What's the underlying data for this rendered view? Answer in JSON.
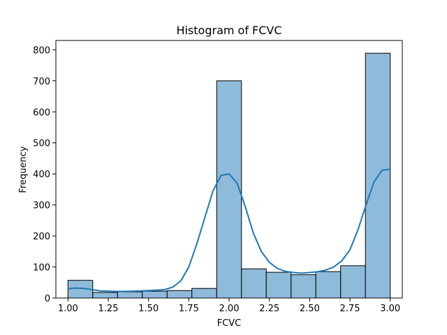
{
  "chart_data": {
    "type": "bar",
    "title": "Histogram of FCVC",
    "xlabel": "FCVC",
    "ylabel": "Frequency",
    "xlim": [
      0.925,
      3.075
    ],
    "ylim": [
      0,
      830
    ],
    "x_ticks": [
      {
        "value": 1.0,
        "label": "1.00"
      },
      {
        "value": 1.25,
        "label": "1.25"
      },
      {
        "value": 1.5,
        "label": "1.50"
      },
      {
        "value": 1.75,
        "label": "1.75"
      },
      {
        "value": 2.0,
        "label": "2.00"
      },
      {
        "value": 2.25,
        "label": "2.25"
      },
      {
        "value": 2.5,
        "label": "2.50"
      },
      {
        "value": 2.75,
        "label": "2.75"
      },
      {
        "value": 3.0,
        "label": "3.00"
      }
    ],
    "y_ticks": [
      {
        "value": 0,
        "label": "0"
      },
      {
        "value": 100,
        "label": "100"
      },
      {
        "value": 200,
        "label": "200"
      },
      {
        "value": 300,
        "label": "300"
      },
      {
        "value": 400,
        "label": "400"
      },
      {
        "value": 500,
        "label": "500"
      },
      {
        "value": 600,
        "label": "600"
      },
      {
        "value": 700,
        "label": "700"
      },
      {
        "value": 800,
        "label": "800"
      }
    ],
    "bins": [
      {
        "x0": 1.0,
        "x1": 1.1538,
        "count": 57
      },
      {
        "x0": 1.1538,
        "x1": 1.3077,
        "count": 18
      },
      {
        "x0": 1.3077,
        "x1": 1.4615,
        "count": 20
      },
      {
        "x0": 1.4615,
        "x1": 1.6154,
        "count": 22
      },
      {
        "x0": 1.6154,
        "x1": 1.7692,
        "count": 24
      },
      {
        "x0": 1.7692,
        "x1": 1.9231,
        "count": 31
      },
      {
        "x0": 1.9231,
        "x1": 2.0769,
        "count": 700
      },
      {
        "x0": 2.0769,
        "x1": 2.2308,
        "count": 94
      },
      {
        "x0": 2.2308,
        "x1": 2.3846,
        "count": 83
      },
      {
        "x0": 2.3846,
        "x1": 2.5385,
        "count": 75
      },
      {
        "x0": 2.5385,
        "x1": 2.6923,
        "count": 85
      },
      {
        "x0": 2.6923,
        "x1": 2.8462,
        "count": 104
      },
      {
        "x0": 2.8462,
        "x1": 3.0,
        "count": 789
      }
    ],
    "kde": {
      "x": [
        1.0,
        1.05,
        1.1,
        1.15,
        1.2,
        1.3,
        1.4,
        1.5,
        1.6,
        1.65,
        1.7,
        1.75,
        1.8,
        1.85,
        1.9,
        1.95,
        2.0,
        2.05,
        2.1,
        2.15,
        2.2,
        2.25,
        2.3,
        2.35,
        2.4,
        2.45,
        2.5,
        2.55,
        2.6,
        2.65,
        2.7,
        2.75,
        2.8,
        2.85,
        2.9,
        2.95,
        3.0
      ],
      "y": [
        30,
        32,
        31,
        27,
        23,
        21,
        22,
        24,
        27,
        35,
        55,
        100,
        175,
        260,
        345,
        395,
        400,
        370,
        295,
        210,
        150,
        115,
        95,
        86,
        82,
        80,
        82,
        85,
        90,
        100,
        120,
        155,
        220,
        300,
        375,
        412,
        415
      ]
    },
    "colors": {
      "bar_fill": "#8fbbda",
      "bar_edge": "#000000",
      "kde_line": "#1f77b4"
    },
    "grid": false,
    "legend": "none"
  }
}
